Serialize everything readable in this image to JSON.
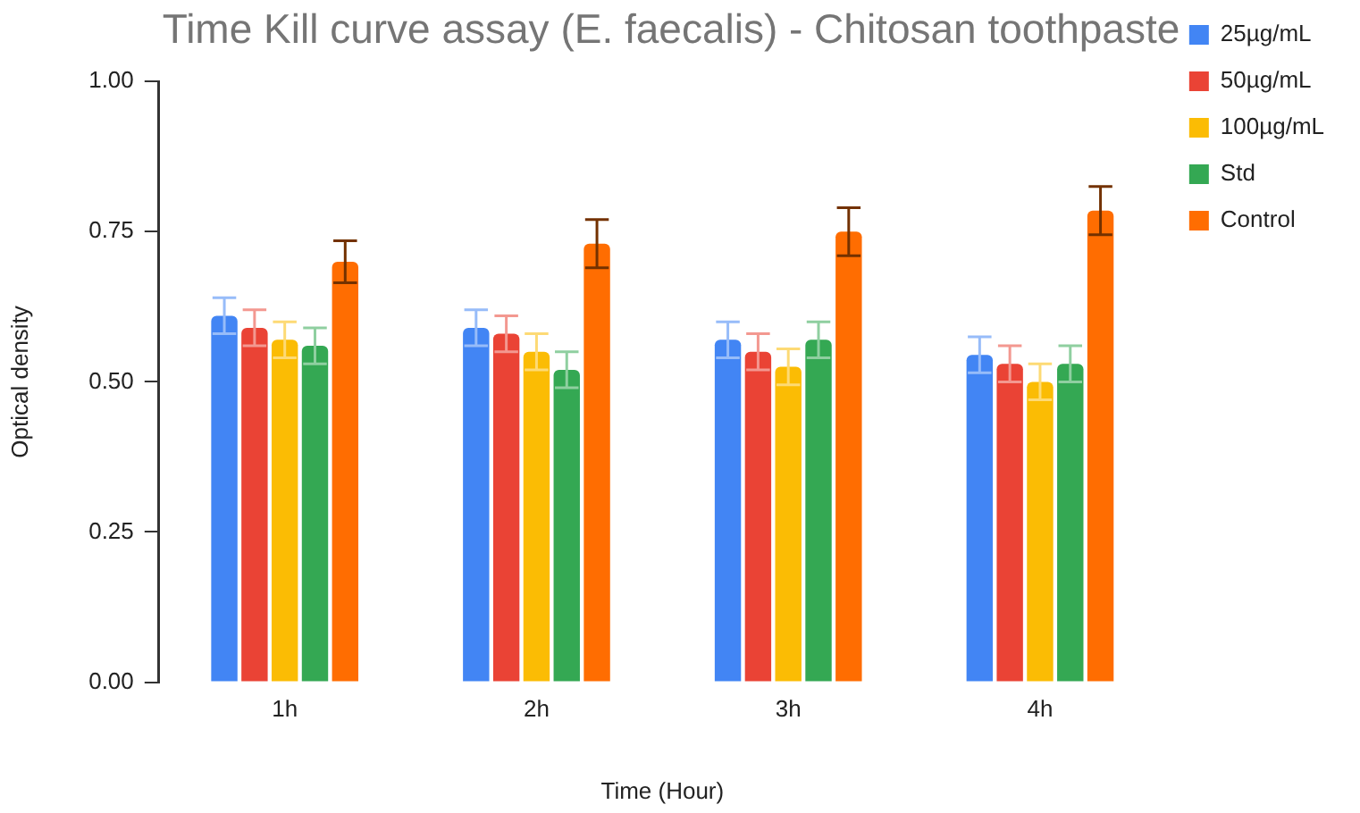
{
  "chart_data": {
    "type": "bar",
    "title": "Time Kill curve assay (E. faecalis) - Chitosan toothpaste",
    "xlabel": "Time (Hour)",
    "ylabel": "Optical density",
    "categories": [
      "1h",
      "2h",
      "3h",
      "4h"
    ],
    "series": [
      {
        "name": "25µg/mL",
        "color": "#4285f4",
        "values": [
          0.61,
          0.59,
          0.57,
          0.545
        ],
        "errors": [
          0.03,
          0.03,
          0.03,
          0.03
        ]
      },
      {
        "name": "50µg/mL",
        "color": "#ea4335",
        "values": [
          0.59,
          0.58,
          0.55,
          0.53
        ],
        "errors": [
          0.03,
          0.03,
          0.03,
          0.03
        ]
      },
      {
        "name": "100µg/mL",
        "color": "#fbbc04",
        "values": [
          0.57,
          0.55,
          0.525,
          0.5
        ],
        "errors": [
          0.03,
          0.03,
          0.03,
          0.03
        ]
      },
      {
        "name": "Std",
        "color": "#34a853",
        "values": [
          0.56,
          0.52,
          0.57,
          0.53
        ],
        "errors": [
          0.03,
          0.03,
          0.03,
          0.03
        ]
      },
      {
        "name": "Control",
        "color": "#ff6d01",
        "values": [
          0.7,
          0.73,
          0.75,
          0.785
        ],
        "errors": [
          0.035,
          0.04,
          0.04,
          0.04
        ]
      }
    ],
    "ylim": [
      0,
      1
    ],
    "yticks": [
      {
        "value": 0,
        "label": "0.00"
      },
      {
        "value": 0.25,
        "label": "0.25"
      },
      {
        "value": 0.5,
        "label": "0.50"
      },
      {
        "value": 0.75,
        "label": "0.75"
      },
      {
        "value": 1,
        "label": "1.00"
      }
    ],
    "grid": false,
    "legend": "top right"
  }
}
